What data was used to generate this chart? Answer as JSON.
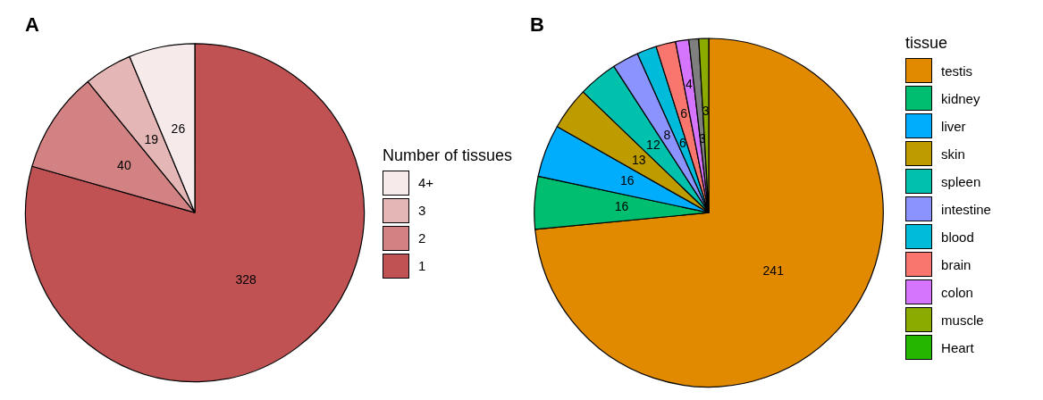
{
  "chart_data": [
    {
      "type": "pie",
      "title": "A",
      "legend_title": "Number of tissues",
      "legend": "right",
      "data_labels": true,
      "categories": [
        "1",
        "2",
        "3",
        "4+"
      ],
      "values": [
        328,
        40,
        19,
        26
      ],
      "colors": [
        "#c05253",
        "#d28283",
        "#e4b6b6",
        "#f6eaea"
      ]
    },
    {
      "type": "pie",
      "title": "B",
      "legend_title": "tissue",
      "legend": "right",
      "data_labels": true,
      "categories": [
        "testis",
        "kidney",
        "liver",
        "skin",
        "spleen",
        "intestine",
        "blood",
        "brain",
        "colon",
        null,
        "muscle",
        "Heart"
      ],
      "values": [
        241,
        16,
        16,
        13,
        12,
        8,
        6,
        6,
        4,
        3,
        3,
        0
      ],
      "colors": [
        "#e18a00",
        "#00be70",
        "#00acfc",
        "#be9c00",
        "#00c1ab",
        "#8b93ff",
        "#00bbda",
        "#f8766d",
        "#d575fe",
        "#7f7f7f",
        "#8cab00",
        "#24b700"
      ]
    }
  ]
}
